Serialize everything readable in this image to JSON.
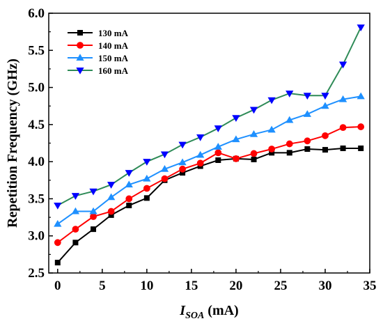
{
  "chart_data": {
    "type": "line",
    "title": "",
    "xlabel": {
      "main": "I",
      "sub": "SOA",
      "unit": " (mA)"
    },
    "ylabel": "Repetition Frequency (GHz)",
    "xlim": [
      -1,
      35
    ],
    "ylim": [
      2.5,
      6.0
    ],
    "xticks": [
      0,
      5,
      10,
      15,
      20,
      25,
      30,
      35
    ],
    "yticks": [
      2.5,
      3.0,
      3.5,
      4.0,
      4.5,
      5.0,
      5.5,
      6.0
    ],
    "xtick_labels": [
      "0",
      "5",
      "10",
      "15",
      "20",
      "25",
      "30",
      "35"
    ],
    "ytick_labels": [
      "2.5",
      "3.0",
      "3.5",
      "4.0",
      "4.5",
      "5.0",
      "5.5",
      "6.0"
    ],
    "x": [
      0,
      2,
      4,
      6,
      8,
      10,
      12,
      14,
      16,
      18,
      20,
      22,
      24,
      26,
      28,
      30,
      32,
      34
    ],
    "legend_position": "top-left",
    "series": [
      {
        "name": "130 mA",
        "color": "#000000",
        "marker": "square",
        "values": [
          2.64,
          2.91,
          3.09,
          3.28,
          3.41,
          3.51,
          3.75,
          3.85,
          3.94,
          4.02,
          4.04,
          4.03,
          4.12,
          4.12,
          4.17,
          4.16,
          4.18,
          4.18
        ]
      },
      {
        "name": "140 mA",
        "color": "#ff0000",
        "marker": "circle",
        "values": [
          2.91,
          3.09,
          3.26,
          3.33,
          3.5,
          3.64,
          3.77,
          3.9,
          3.98,
          4.12,
          4.04,
          4.11,
          4.17,
          4.24,
          4.28,
          4.35,
          4.46,
          4.47
        ]
      },
      {
        "name": "150 mA",
        "color": "#1e90ff",
        "marker": "triangle-up",
        "values": [
          3.16,
          3.33,
          3.33,
          3.52,
          3.69,
          3.77,
          3.9,
          3.99,
          4.09,
          4.2,
          4.3,
          4.37,
          4.43,
          4.56,
          4.64,
          4.75,
          4.84,
          4.88
        ]
      },
      {
        "name": "160 mA",
        "color": "#0000ff",
        "line_color": "#2e8b57",
        "marker": "triangle-down",
        "values": [
          3.41,
          3.54,
          3.6,
          3.69,
          3.85,
          4.0,
          4.1,
          4.23,
          4.33,
          4.45,
          4.59,
          4.7,
          4.83,
          4.92,
          4.89,
          4.89,
          5.31,
          5.81
        ]
      }
    ]
  }
}
